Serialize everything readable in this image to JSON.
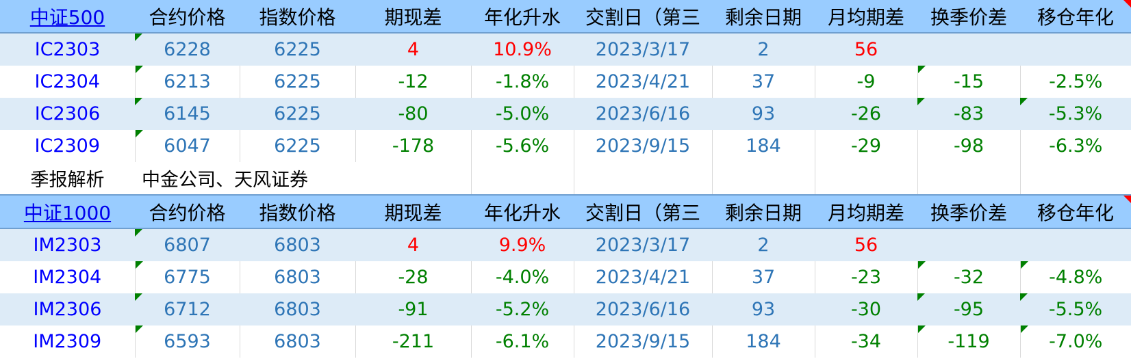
{
  "colors": {
    "header_bg": "#99ccff",
    "alt_row_bg": "#ddebf7",
    "code": "#0000ff",
    "price": "#2e75b6",
    "positive": "#ff0000",
    "negative": "#008000"
  },
  "columns": [
    "合约价格",
    "指数价格",
    "期现差",
    "年化升水",
    "交割日（第三",
    "剩余日期",
    "月均期差",
    "换季价差",
    "移仓年化"
  ],
  "sections": [
    {
      "index_name": "中证500",
      "rows": [
        {
          "cells": [
            "IC2303",
            "6228",
            "6225",
            "4",
            "10.9%",
            "2023/3/17",
            "2",
            "56",
            "",
            ""
          ],
          "colors": [
            "code",
            "price",
            "price",
            "red",
            "red",
            "price",
            "price",
            "red",
            "",
            ""
          ],
          "flags": [
            1
          ],
          "alt": true
        },
        {
          "cells": [
            "IC2304",
            "6213",
            "6225",
            "-12",
            "-1.8%",
            "2023/4/21",
            "37",
            "-9",
            "-15",
            "-2.5%"
          ],
          "colors": [
            "code",
            "price",
            "price",
            "green",
            "green",
            "price",
            "price",
            "green",
            "green",
            "green"
          ],
          "flags": [
            1,
            8
          ],
          "alt": false
        },
        {
          "cells": [
            "IC2306",
            "6145",
            "6225",
            "-80",
            "-5.0%",
            "2023/6/16",
            "93",
            "-26",
            "-83",
            "-5.3%"
          ],
          "colors": [
            "code",
            "price",
            "price",
            "green",
            "green",
            "price",
            "price",
            "green",
            "green",
            "green"
          ],
          "flags": [
            1,
            8,
            9
          ],
          "alt": true
        },
        {
          "cells": [
            "IC2309",
            "6047",
            "6225",
            "-178",
            "-5.6%",
            "2023/9/15",
            "184",
            "-29",
            "-98",
            "-6.3%"
          ],
          "colors": [
            "code",
            "price",
            "price",
            "green",
            "green",
            "price",
            "price",
            "green",
            "green",
            "green"
          ],
          "flags": [
            1
          ],
          "alt": false
        }
      ]
    },
    {
      "index_name": "中证1000",
      "rows": [
        {
          "cells": [
            "IM2303",
            "6807",
            "6803",
            "4",
            "9.9%",
            "2023/3/17",
            "2",
            "56",
            "",
            ""
          ],
          "colors": [
            "code",
            "price",
            "price",
            "red",
            "red",
            "price",
            "price",
            "red",
            "",
            ""
          ],
          "flags": [
            1
          ],
          "alt": true
        },
        {
          "cells": [
            "IM2304",
            "6775",
            "6803",
            "-28",
            "-4.0%",
            "2023/4/21",
            "37",
            "-23",
            "-32",
            "-4.8%"
          ],
          "colors": [
            "code",
            "price",
            "price",
            "green",
            "green",
            "price",
            "price",
            "green",
            "green",
            "green"
          ],
          "flags": [
            1,
            8,
            9
          ],
          "alt": false
        },
        {
          "cells": [
            "IM2306",
            "6712",
            "6803",
            "-91",
            "-5.2%",
            "2023/6/16",
            "93",
            "-30",
            "-95",
            "-5.5%"
          ],
          "colors": [
            "code",
            "price",
            "price",
            "green",
            "green",
            "price",
            "price",
            "green",
            "green",
            "green"
          ],
          "flags": [
            1,
            8,
            9
          ],
          "alt": true
        },
        {
          "cells": [
            "IM2309",
            "6593",
            "6803",
            "-211",
            "-6.1%",
            "2023/9/15",
            "184",
            "-34",
            "-119",
            "-7.0%"
          ],
          "colors": [
            "code",
            "price",
            "price",
            "green",
            "green",
            "price",
            "price",
            "green",
            "green",
            "green"
          ],
          "flags": [
            1,
            8,
            9
          ],
          "alt": false
        }
      ]
    }
  ],
  "note": {
    "label": "季报解析",
    "value": "中金公司、天风证券"
  }
}
